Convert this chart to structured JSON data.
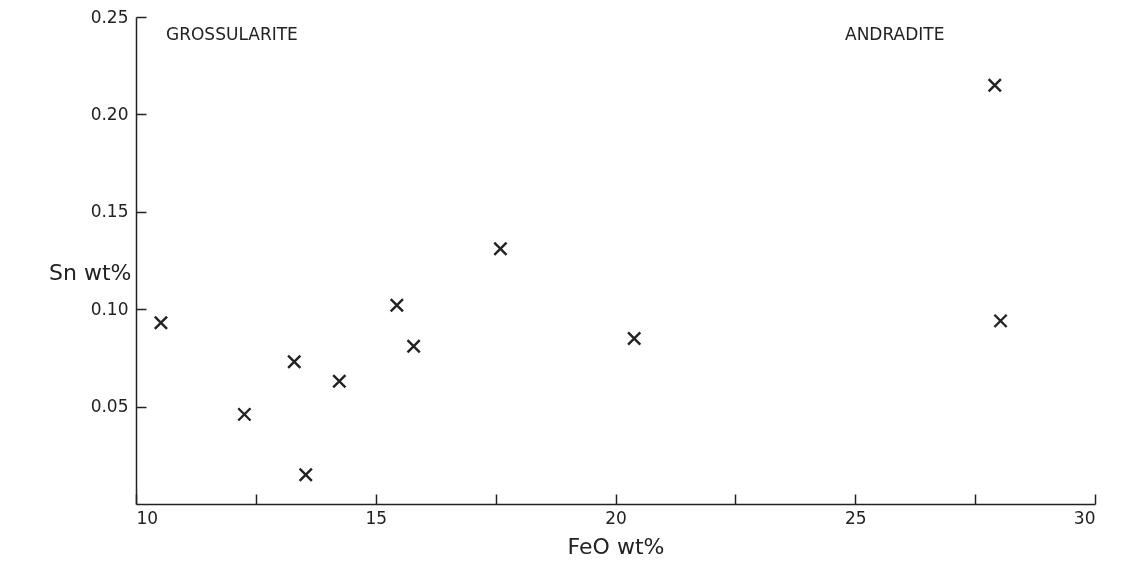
{
  "chart_data": {
    "type": "scatter",
    "xlabel": "FeO wt%",
    "ylabel": "Sn wt%",
    "annotations": [
      "GROSSULARITE",
      "ANDRADITE"
    ],
    "x": [
      10.52,
      12.26,
      13.3,
      13.54,
      14.24,
      15.44,
      15.79,
      17.6,
      20.39,
      27.91,
      28.03
    ],
    "series": [
      {
        "color": "#222222",
        "values": [
          0.093,
          0.046,
          0.073,
          0.015,
          0.063,
          0.102,
          0.081,
          0.131,
          0.085,
          0.215,
          0.094
        ]
      }
    ],
    "xlim": [
      10,
      30
    ],
    "xticks": [
      10,
      {
        "value": 12.5,
        "label": null
      },
      15,
      {
        "value": 17.5,
        "label": null
      },
      20,
      {
        "value": 22.5,
        "label": null
      },
      25,
      {
        "value": 27.5,
        "label": null
      },
      30
    ],
    "ylim": [
      0,
      0.25
    ],
    "yticks": [
      0.05,
      {
        "value": 0.1,
        "label": "0.10"
      },
      0.15,
      {
        "value": 0.2,
        "label": "0.20"
      },
      0.25
    ],
    "marker": "cross",
    "grid": false
  }
}
